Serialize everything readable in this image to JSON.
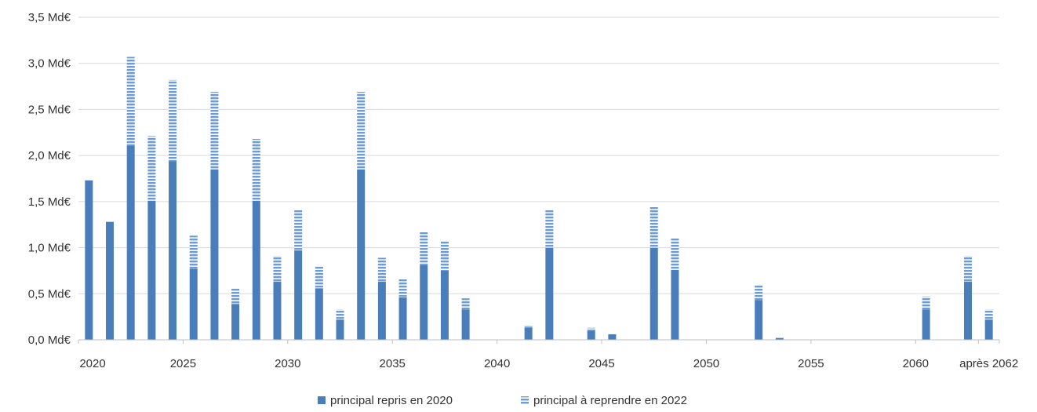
{
  "colors": {
    "solid": "#4a7ebb",
    "stripe": "#6f9bd2",
    "grid": "#d9d9d9",
    "axis": "#bfbfbf",
    "text": "#333333"
  },
  "chart_data": {
    "type": "bar",
    "stacked": true,
    "title": "",
    "xlabel": "",
    "ylabel": "",
    "ylim": [
      0,
      3.5
    ],
    "y_ticks": [
      {
        "value": 0,
        "label": "0,0 Md€"
      },
      {
        "value": 0.5,
        "label": "0,5 Md€"
      },
      {
        "value": 1.0,
        "label": "1,0 Md€"
      },
      {
        "value": 1.5,
        "label": "1,5 Md€"
      },
      {
        "value": 2.0,
        "label": "2,0 Md€"
      },
      {
        "value": 2.5,
        "label": "2,5 Md€"
      },
      {
        "value": 3.0,
        "label": "3,0 Md€"
      },
      {
        "value": 3.5,
        "label": "3,5 Md€"
      }
    ],
    "x_tick_labels": [
      "2020",
      "2025",
      "2030",
      "2035",
      "2040",
      "2045",
      "2050",
      "2055",
      "2060",
      "après 2062"
    ],
    "grid": true,
    "legend_position": "bottom",
    "categories": [
      "2020",
      "2021",
      "2022",
      "2023",
      "2024",
      "2025",
      "2026",
      "2027",
      "2028",
      "2029",
      "2030",
      "2031",
      "2032",
      "2033",
      "2034",
      "2035",
      "2036",
      "2037",
      "2038",
      "2039",
      "2040",
      "2041",
      "2042",
      "2043",
      "2044",
      "2045",
      "2046",
      "2047",
      "2048",
      "2049",
      "2050",
      "2051",
      "2052",
      "2053",
      "2054",
      "2055",
      "2056",
      "2057",
      "2058",
      "2059",
      "2060",
      "2061",
      "2062",
      "après 2062"
    ],
    "series": [
      {
        "name": "principal repris en 2020",
        "pattern": "solid",
        "values": [
          1.73,
          1.28,
          2.11,
          1.51,
          1.94,
          0.77,
          1.85,
          0.39,
          1.51,
          0.63,
          0.97,
          0.56,
          0.22,
          1.85,
          0.63,
          0.46,
          0.81,
          0.75,
          0.33,
          0,
          0,
          0.13,
          1.0,
          0,
          0.1,
          0.06,
          0,
          1.0,
          0.76,
          0,
          0,
          0,
          0.43,
          0.02,
          0,
          0,
          0,
          0,
          0,
          0,
          0.33,
          0,
          0.63,
          0.22
        ]
      },
      {
        "name": "principal à reprendre en 2022",
        "pattern": "striped",
        "values": [
          0,
          0,
          0.96,
          0.7,
          0.88,
          0.36,
          0.84,
          0.17,
          0.67,
          0.28,
          0.44,
          0.24,
          0.11,
          0.84,
          0.26,
          0.2,
          0.36,
          0.32,
          0.12,
          0,
          0,
          0.03,
          0.41,
          0,
          0.03,
          0,
          0,
          0.45,
          0.34,
          0,
          0,
          0,
          0.16,
          0,
          0,
          0,
          0,
          0,
          0,
          0,
          0.14,
          0,
          0.28,
          0.11
        ]
      }
    ]
  }
}
